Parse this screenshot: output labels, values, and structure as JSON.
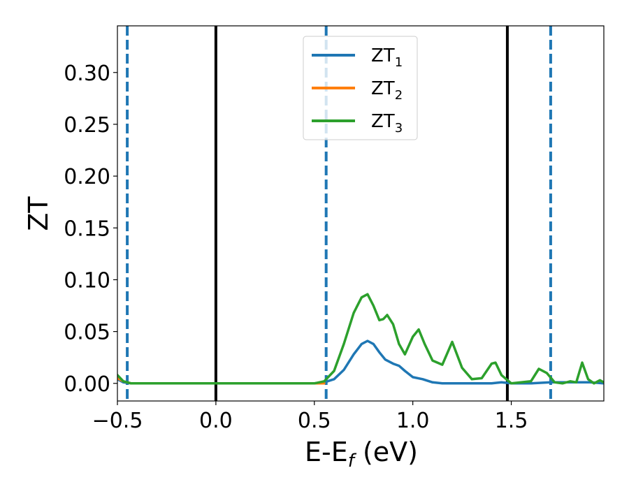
{
  "chart_data": {
    "type": "line",
    "xlabel": "E-E",
    "xlabel_sub": "f",
    "xlabel_unit": " (eV)",
    "ylabel": "ZT",
    "xlim": [
      -0.5,
      1.97
    ],
    "ylim": [
      -0.017,
      0.345
    ],
    "x_ticks": [
      -0.5,
      0.0,
      0.5,
      1.0,
      1.5
    ],
    "x_tick_labels": [
      "−0.5",
      "0.0",
      "0.5",
      "1.0",
      "1.5"
    ],
    "y_ticks": [
      0.0,
      0.05,
      0.1,
      0.15,
      0.2,
      0.25,
      0.3
    ],
    "y_tick_labels": [
      "0.00",
      "0.05",
      "0.10",
      "0.15",
      "0.20",
      "0.25",
      "0.30"
    ],
    "grid": false,
    "legend_position": "top-center",
    "vertical_lines": [
      {
        "x": -0.45,
        "style": "dashed",
        "color": "#1f77b4"
      },
      {
        "x": 0.0,
        "style": "solid",
        "color": "#000000"
      },
      {
        "x": 0.56,
        "style": "dashed",
        "color": "#1f77b4"
      },
      {
        "x": 1.48,
        "style": "solid",
        "color": "#000000"
      },
      {
        "x": 1.7,
        "style": "dashed",
        "color": "#1f77b4"
      }
    ],
    "series": [
      {
        "name": "ZT",
        "name_sub": "1",
        "color": "#1f77b4",
        "x": [
          -0.5,
          -0.47,
          -0.43,
          -0.3,
          0.0,
          0.3,
          0.5,
          0.55,
          0.6,
          0.65,
          0.7,
          0.74,
          0.77,
          0.8,
          0.83,
          0.86,
          0.9,
          0.93,
          0.96,
          1.0,
          1.05,
          1.1,
          1.15,
          1.2,
          1.3,
          1.4,
          1.45,
          1.5,
          1.6,
          1.7,
          1.8,
          1.9,
          1.97
        ],
        "y": [
          0.004,
          0.001,
          0.0,
          0.0,
          0.0,
          0.0,
          0.0,
          0.001,
          0.004,
          0.013,
          0.028,
          0.038,
          0.041,
          0.038,
          0.03,
          0.023,
          0.019,
          0.017,
          0.012,
          0.006,
          0.004,
          0.001,
          0.0,
          0.0,
          0.0,
          0.0,
          0.001,
          0.0,
          0.0,
          0.001,
          0.001,
          0.001,
          0.0
        ]
      },
      {
        "name": "ZT",
        "name_sub": "2",
        "color": "#ff7f0e",
        "x": [
          -0.5,
          -0.47,
          -0.43,
          -0.3,
          0.0,
          0.3,
          0.5,
          0.55
        ],
        "y": [
          0.005,
          0.002,
          0.0,
          0.0,
          0.0,
          0.0,
          0.0,
          0.0
        ]
      },
      {
        "name": "ZT",
        "name_sub": "3",
        "color": "#2ca02c",
        "x": [
          -0.5,
          -0.47,
          -0.43,
          -0.3,
          0.0,
          0.3,
          0.5,
          0.55,
          0.6,
          0.65,
          0.7,
          0.74,
          0.77,
          0.8,
          0.83,
          0.85,
          0.87,
          0.9,
          0.93,
          0.96,
          1.0,
          1.03,
          1.06,
          1.1,
          1.15,
          1.2,
          1.25,
          1.3,
          1.35,
          1.4,
          1.42,
          1.45,
          1.5,
          1.55,
          1.6,
          1.64,
          1.68,
          1.72,
          1.76,
          1.8,
          1.83,
          1.86,
          1.89,
          1.92,
          1.95,
          1.97
        ],
        "y": [
          0.008,
          0.002,
          0.0,
          0.0,
          0.0,
          0.0,
          0.0,
          0.002,
          0.012,
          0.038,
          0.068,
          0.083,
          0.086,
          0.075,
          0.061,
          0.062,
          0.066,
          0.057,
          0.038,
          0.028,
          0.045,
          0.052,
          0.038,
          0.022,
          0.018,
          0.04,
          0.015,
          0.004,
          0.005,
          0.019,
          0.02,
          0.008,
          0.0,
          0.001,
          0.002,
          0.014,
          0.01,
          0.001,
          0.0,
          0.002,
          0.001,
          0.02,
          0.004,
          0.0,
          0.003,
          0.001
        ]
      }
    ]
  }
}
